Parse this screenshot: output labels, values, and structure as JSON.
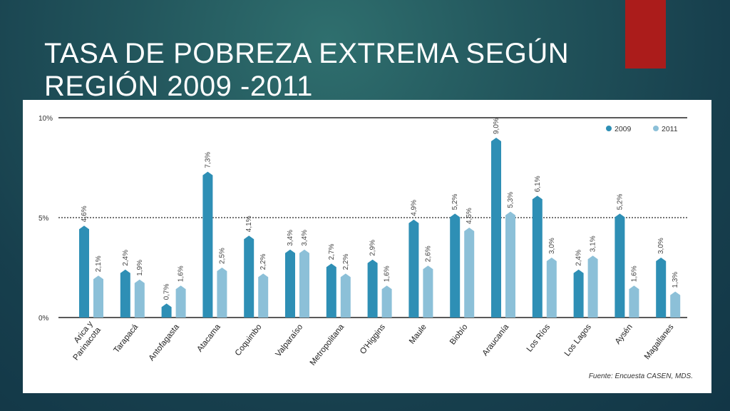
{
  "slide": {
    "title_line1": "TASA DE POBREZA EXTREMA SEGÚN",
    "title_line2": "REGIÓN 2009 -2011",
    "accent_color": "#ab1c1b"
  },
  "chart_data": {
    "type": "bar",
    "categories": [
      "Arica y Parinacota",
      "Tarapacá",
      "Antofagasta",
      "Atacama",
      "Coquimbo",
      "Valparaíso",
      "Metropolitana",
      "O'Higgins",
      "Maule",
      "Biobío",
      "Araucanía",
      "Los Ríos",
      "Los Lagos",
      "Aysén",
      "Magallanes"
    ],
    "series": [
      {
        "name": "2009",
        "color": "#2e8fb5",
        "values": [
          4.6,
          2.4,
          0.7,
          7.3,
          4.1,
          3.4,
          2.7,
          2.9,
          4.9,
          5.2,
          9.0,
          6.1,
          2.4,
          5.2,
          3.0
        ],
        "labels": [
          "4,6%",
          "2,4%",
          "0,7%",
          "7,3%",
          "4,1%",
          "3,4%",
          "2,7%",
          "2,9%",
          "4,9%",
          "5,2%",
          "9,0%",
          "6,1%",
          "2,4%",
          "5,2%",
          "3,0%"
        ]
      },
      {
        "name": "2011",
        "color": "#8cc0d8",
        "values": [
          2.1,
          1.9,
          1.6,
          2.5,
          2.2,
          3.4,
          2.2,
          1.6,
          2.6,
          4.5,
          5.3,
          3.0,
          3.1,
          1.6,
          1.3
        ],
        "labels": [
          "2,1%",
          "1,9%",
          "1,6%",
          "2,5%",
          "2,2%",
          "3,4%",
          "2,2%",
          "1,6%",
          "2,6%",
          "4,5%",
          "5,3%",
          "3,0%",
          "3,1%",
          "1,6%",
          "1,3%"
        ]
      }
    ],
    "yticks": [
      {
        "value": 0,
        "label": "0%",
        "style": "solid"
      },
      {
        "value": 5,
        "label": "5%",
        "style": "dotted"
      },
      {
        "value": 10,
        "label": "10%",
        "style": "solid"
      }
    ],
    "ylim": [
      0,
      10
    ],
    "legend_position": "top-right",
    "source": "Fuente: Encuesta CASEN, MDS.",
    "xlabel": "",
    "ylabel": ""
  }
}
